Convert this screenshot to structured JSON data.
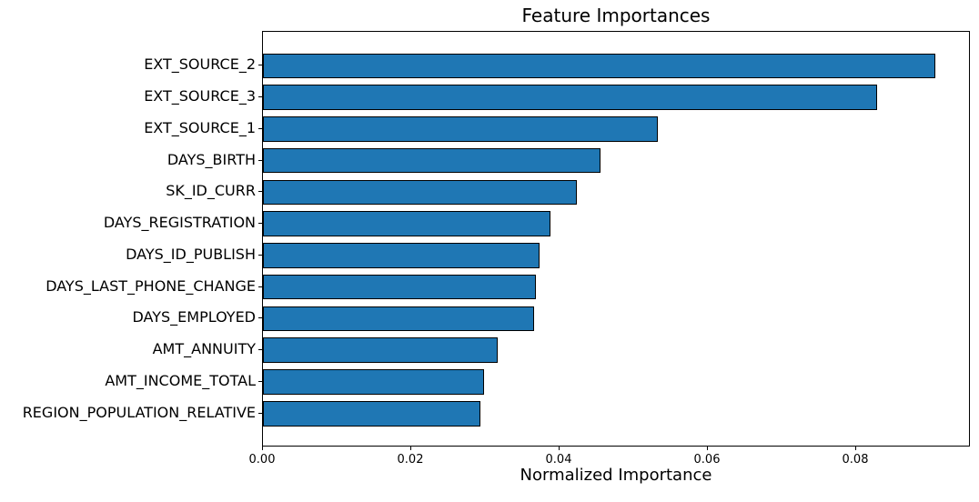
{
  "chart_data": {
    "type": "bar",
    "orientation": "horizontal",
    "title": "Feature Importances",
    "xlabel": "Normalized Importance",
    "ylabel": "",
    "categories": [
      "EXT_SOURCE_2",
      "EXT_SOURCE_3",
      "EXT_SOURCE_1",
      "DAYS_BIRTH",
      "SK_ID_CURR",
      "DAYS_REGISTRATION",
      "DAYS_ID_PUBLISH",
      "DAYS_LAST_PHONE_CHANGE",
      "DAYS_EMPLOYED",
      "AMT_ANNUITY",
      "AMT_INCOME_TOTAL",
      "REGION_POPULATION_RELATIVE"
    ],
    "values": [
      0.0907,
      0.0828,
      0.0533,
      0.0456,
      0.0423,
      0.0388,
      0.0373,
      0.0368,
      0.0366,
      0.0317,
      0.0298,
      0.0293
    ],
    "xlim": [
      0,
      0.0955
    ],
    "xticks": {
      "values": [
        0.0,
        0.02,
        0.04,
        0.06,
        0.08
      ],
      "labels": [
        "0.00",
        "0.02",
        "0.04",
        "0.06",
        "0.08"
      ]
    },
    "grid": false,
    "legend": null,
    "bar_color": "#1f77b4",
    "bar_edge_color": "#000000",
    "axis_color": "#000000",
    "background_color": "#ffffff"
  }
}
